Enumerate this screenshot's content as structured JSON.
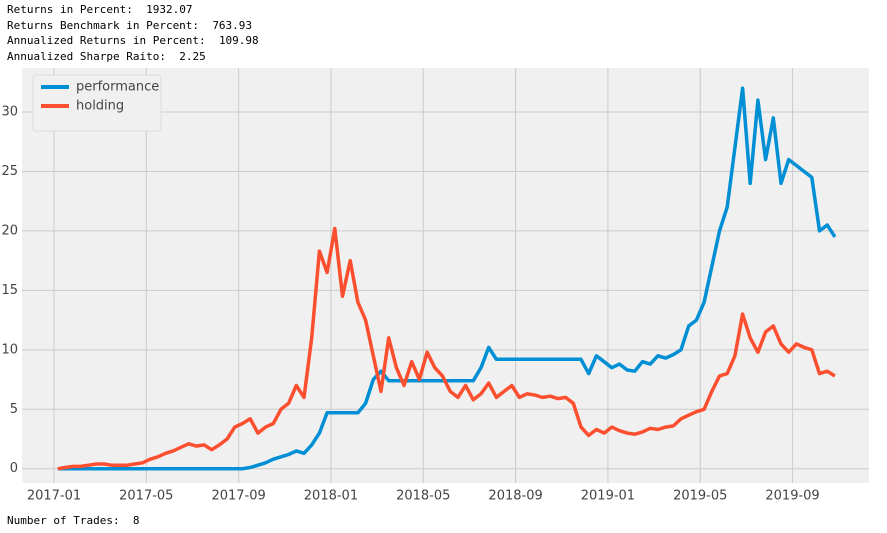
{
  "stats": [
    {
      "label": "Returns in Percent:",
      "value": 1932.07
    },
    {
      "label": "Returns Benchmark in Percent:",
      "value": 763.93
    },
    {
      "label": "Annualized Returns in Percent:",
      "value": 109.98
    },
    {
      "label": "Annualized Sharpe Raito:",
      "value": 2.25
    }
  ],
  "chart_data": {
    "type": "line",
    "x": [
      "2017-01",
      "2017-01",
      "2017-01",
      "2017-02",
      "2017-02",
      "2017-02",
      "2017-03",
      "2017-03",
      "2017-03",
      "2017-04",
      "2017-04",
      "2017-04",
      "2017-05",
      "2017-05",
      "2017-05",
      "2017-06",
      "2017-06",
      "2017-06",
      "2017-07",
      "2017-07",
      "2017-07",
      "2017-08",
      "2017-08",
      "2017-08",
      "2017-09",
      "2017-09",
      "2017-09",
      "2017-10",
      "2017-10",
      "2017-10",
      "2017-11",
      "2017-11",
      "2017-11",
      "2017-12",
      "2017-12",
      "2017-12",
      "2018-01",
      "2018-01",
      "2018-01",
      "2018-02",
      "2018-02",
      "2018-02",
      "2018-03",
      "2018-03",
      "2018-03",
      "2018-04",
      "2018-04",
      "2018-04",
      "2018-05",
      "2018-05",
      "2018-05",
      "2018-06",
      "2018-06",
      "2018-06",
      "2018-07",
      "2018-07",
      "2018-07",
      "2018-08",
      "2018-08",
      "2018-08",
      "2018-09",
      "2018-09",
      "2018-09",
      "2018-10",
      "2018-10",
      "2018-10",
      "2018-11",
      "2018-11",
      "2018-11",
      "2018-12",
      "2018-12",
      "2018-12",
      "2019-01",
      "2019-01",
      "2019-01",
      "2019-02",
      "2019-02",
      "2019-02",
      "2019-03",
      "2019-03",
      "2019-03",
      "2019-04",
      "2019-04",
      "2019-04",
      "2019-05",
      "2019-05",
      "2019-05",
      "2019-06",
      "2019-06",
      "2019-06",
      "2019-07",
      "2019-07",
      "2019-07",
      "2019-08",
      "2019-08",
      "2019-08",
      "2019-09",
      "2019-09",
      "2019-09",
      "2019-10",
      "2019-10",
      "2019-10"
    ],
    "series": [
      {
        "name": "performance",
        "color": "#008fd5",
        "values": [
          0,
          0,
          0,
          0,
          0,
          0,
          0,
          0,
          0,
          0,
          0,
          0,
          0,
          0,
          0,
          0,
          0,
          0,
          0,
          0,
          0,
          0,
          0,
          0,
          0,
          0.1,
          0.3,
          0.5,
          0.8,
          1.0,
          1.2,
          1.5,
          1.3,
          2.0,
          3.0,
          4.7,
          4.7,
          4.7,
          4.7,
          4.7,
          5.5,
          7.5,
          8.2,
          7.4,
          7.4,
          7.4,
          7.4,
          7.4,
          7.4,
          7.4,
          7.4,
          7.4,
          7.4,
          7.4,
          7.4,
          8.5,
          10.2,
          9.2,
          9.2,
          9.2,
          9.2,
          9.2,
          9.2,
          9.2,
          9.2,
          9.2,
          9.2,
          9.2,
          9.2,
          8.0,
          9.5,
          9.0,
          8.5,
          8.8,
          8.3,
          8.2,
          9.0,
          8.8,
          9.5,
          9.3,
          9.6,
          10.0,
          12.0,
          12.5,
          14.0,
          17.0,
          20.0,
          22.0,
          27.0,
          32.0,
          24.0,
          31.0,
          26.0,
          29.5,
          24.0,
          26.0,
          25.5,
          25.0,
          24.5,
          20.0,
          20.5,
          19.5
        ]
      },
      {
        "name": "holding",
        "color": "#fc4f30",
        "values": [
          0,
          0.1,
          0.2,
          0.2,
          0.3,
          0.4,
          0.4,
          0.3,
          0.3,
          0.3,
          0.4,
          0.5,
          0.8,
          1.0,
          1.3,
          1.5,
          1.8,
          2.1,
          1.9,
          2.0,
          1.6,
          2.0,
          2.5,
          3.5,
          3.8,
          4.2,
          3.0,
          3.5,
          3.8,
          5.0,
          5.5,
          7.0,
          6.0,
          11.0,
          18.3,
          16.5,
          20.2,
          14.5,
          17.5,
          14.0,
          12.5,
          9.5,
          6.5,
          11.0,
          8.5,
          7.0,
          9.0,
          7.5,
          9.8,
          8.5,
          7.8,
          6.5,
          6.0,
          7.0,
          5.8,
          6.3,
          7.2,
          6.0,
          6.5,
          7.0,
          6.0,
          6.3,
          6.2,
          6.0,
          6.1,
          5.9,
          6.0,
          5.5,
          3.5,
          2.8,
          3.3,
          3.0,
          3.5,
          3.2,
          3.0,
          2.9,
          3.1,
          3.4,
          3.3,
          3.5,
          3.6,
          4.2,
          4.5,
          4.8,
          5.0,
          6.5,
          7.8,
          8.0,
          9.5,
          13.0,
          11.0,
          9.8,
          11.5,
          12.0,
          10.5,
          9.8,
          10.5,
          10.2,
          10.0,
          8.0,
          8.2,
          7.8
        ]
      }
    ],
    "ylim": [
      -1.2,
      33.7
    ],
    "yticks": [
      0,
      5,
      10,
      15,
      20,
      25,
      30
    ],
    "xticks": [
      "2017-01",
      "2017-05",
      "2017-09",
      "2018-01",
      "2018-05",
      "2018-09",
      "2019-01",
      "2019-05",
      "2019-09"
    ],
    "grid": true,
    "legend": "upper left"
  },
  "footer": {
    "label": "Number of Trades:",
    "value": 8
  }
}
